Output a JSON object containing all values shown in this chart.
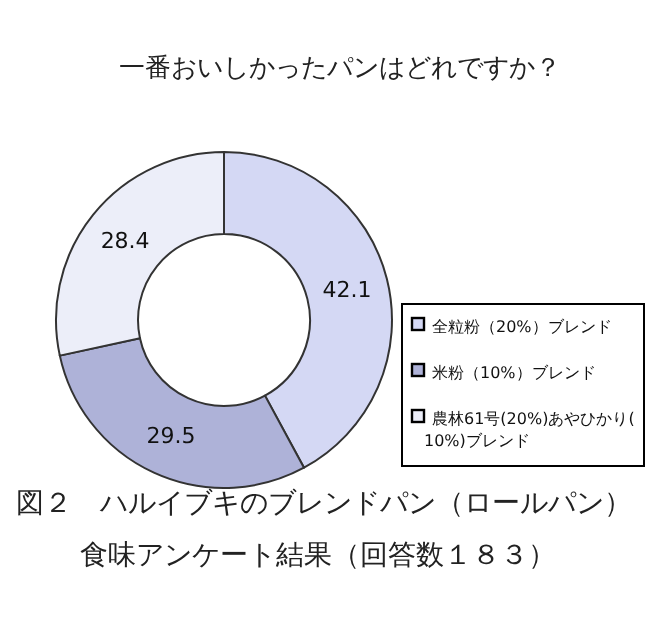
{
  "chart_data": {
    "type": "donut",
    "title": "一番おいしかったパンはどれですか？",
    "categories": [
      "全粒粉（20%）ブレンド",
      "米粉（10%）ブレンド",
      "農林61号(20%)あやひかり(10%)ブレンド"
    ],
    "values": [
      42.1,
      29.5,
      28.4
    ],
    "colors": [
      "#d4d8f4",
      "#aeb2d8",
      "#eceef9"
    ],
    "data_labels": true,
    "legend": "right",
    "annotations": [
      "図２　ハルイブキのブレンドパン（ロールパン）食味アンケート結果（回答数１８３）"
    ]
  }
}
